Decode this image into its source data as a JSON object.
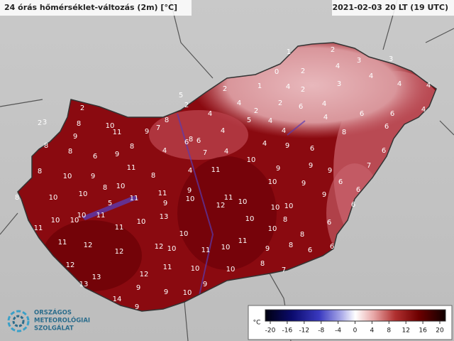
{
  "header": {
    "title": "24 órás hőmérséklet-változás (2m) [°C]",
    "time": "2021-02-03 20 LT (19 UTC)"
  },
  "logo": {
    "line1": "ORSZÁGOS",
    "line2": "METEOROLÓGIAI",
    "line3": "SZOLGÁLAT"
  },
  "colorbar": {
    "unit": "°C",
    "ticks": [
      -20,
      -16,
      -12,
      -8,
      -4,
      0,
      4,
      8,
      12,
      16,
      20
    ]
  },
  "stations": [
    1,
    2,
    3,
    3,
    0,
    2,
    4,
    4,
    2,
    1,
    4,
    2,
    3,
    4,
    4,
    5,
    2,
    4,
    2,
    4,
    2,
    4,
    5,
    4,
    6,
    4,
    6,
    6,
    4,
    2,
    3,
    2,
    8,
    10,
    11,
    9,
    8,
    7,
    4,
    8,
    6,
    4,
    9,
    8,
    8,
    4,
    6,
    7,
    4,
    9,
    8,
    6,
    4,
    6,
    6,
    8,
    6,
    9,
    8,
    10,
    9,
    11,
    8,
    4,
    11,
    10,
    9,
    9,
    9,
    7,
    10,
    10,
    8,
    10,
    11,
    9,
    11,
    10,
    10,
    9,
    6,
    6,
    8,
    10,
    10,
    5,
    11,
    10,
    9,
    12,
    10,
    10,
    9,
    6,
    11,
    11,
    10,
    10,
    13,
    10,
    10,
    8,
    6,
    11,
    10,
    8,
    11,
    12,
    12,
    10,
    11,
    10,
    11,
    9,
    8,
    6,
    6,
    12,
    12,
    11,
    10,
    10,
    8,
    7,
    13,
    12,
    13,
    9,
    9,
    10,
    9,
    14,
    9
  ]
}
